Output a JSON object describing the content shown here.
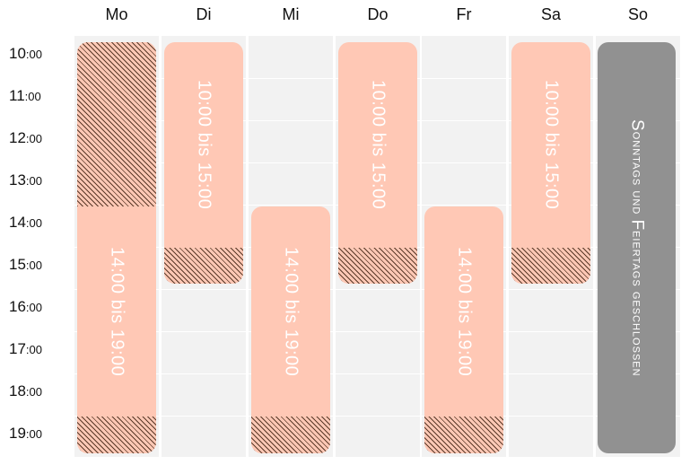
{
  "days": [
    "Mo",
    "Di",
    "Mi",
    "Do",
    "Fr",
    "Sa",
    "So"
  ],
  "hours": [
    "10",
    "11",
    "12",
    "13",
    "14",
    "15",
    "16",
    "17",
    "18",
    "19"
  ],
  "minutes_suffix": ":00",
  "blocks": {
    "di": "10:00 bis 15:00",
    "do": "10:00 bis 15:00",
    "sa": "10:00 bis 15:00",
    "mo": "14:00 bis 19:00",
    "mi": "14:00 bis 19:00",
    "fr": "14:00 bis 19:00"
  },
  "closed": {
    "s1": "S",
    "w1": "onntags",
    "w2": " und ",
    "f1": "F",
    "w3": "eiertags",
    "w4": " geschlossen"
  },
  "colors": {
    "block": "#ffc8b5",
    "hatch_line": "#5a3b2a",
    "closed": "#919191",
    "grid_bg": "#f2f2f2"
  }
}
